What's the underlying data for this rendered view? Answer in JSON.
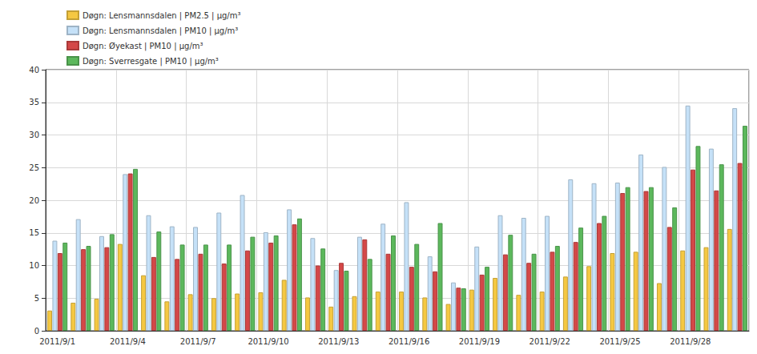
{
  "chart_data": {
    "type": "bar",
    "categories": [
      "2011/9/1",
      null,
      null,
      "2011/9/4",
      null,
      null,
      "2011/9/7",
      null,
      null,
      "2011/9/10",
      null,
      null,
      "2011/9/13",
      null,
      null,
      "2011/9/16",
      null,
      null,
      "2011/9/19",
      null,
      null,
      "2011/9/22",
      null,
      null,
      "2011/9/25",
      null,
      null,
      "2011/9/28",
      null,
      null
    ],
    "series": [
      {
        "name": "Døgn: Lensmannsdalen | PM2.5 | µg/m³",
        "color": "#f5c842",
        "values": [
          3.1,
          4.3,
          4.9,
          13.3,
          8.5,
          4.5,
          5.6,
          5.0,
          5.7,
          5.9,
          7.8,
          5.1,
          3.7,
          5.3,
          6.0,
          6.0,
          5.1,
          4.1,
          6.3,
          8.1,
          5.5,
          6.0,
          8.3,
          9.9,
          11.9,
          12.1,
          7.3,
          12.3,
          12.8,
          15.6
        ]
      },
      {
        "name": "Døgn: Lensmannsdalen | PM10 | µg/m³",
        "color": "#c5e1f8",
        "values": [
          13.8,
          17.1,
          14.5,
          24.0,
          17.7,
          16.0,
          15.9,
          18.1,
          20.8,
          15.1,
          18.6,
          14.2,
          9.3,
          14.4,
          16.4,
          19.7,
          11.4,
          7.4,
          12.9,
          17.7,
          17.3,
          17.6,
          23.2,
          22.6,
          22.7,
          27.0,
          25.1,
          34.5,
          27.9,
          34.1
        ]
      },
      {
        "name": "Døgn: Øyekast | PM10 | µg/m³",
        "color": "#d44848",
        "values": [
          11.9,
          12.5,
          12.8,
          24.1,
          11.3,
          11.0,
          11.8,
          10.3,
          12.3,
          13.5,
          16.3,
          10.0,
          10.4,
          14.0,
          11.8,
          9.8,
          9.1,
          6.6,
          8.6,
          11.7,
          10.4,
          12.1,
          13.6,
          16.5,
          21.1,
          21.4,
          15.9,
          24.7,
          21.5,
          25.7
        ]
      },
      {
        "name": "Døgn: Sverresgate | PM10 | µg/m³",
        "color": "#5cb85c",
        "values": [
          13.5,
          13.0,
          14.8,
          24.8,
          15.2,
          13.2,
          13.2,
          13.2,
          14.4,
          14.6,
          17.2,
          12.6,
          9.2,
          11.0,
          14.6,
          13.3,
          16.5,
          6.5,
          9.8,
          14.7,
          11.8,
          13.0,
          15.8,
          17.6,
          22.0,
          22.0,
          18.9,
          28.3,
          25.5,
          31.4
        ]
      }
    ],
    "ylim": [
      0,
      40
    ],
    "yticks": [
      0,
      5,
      10,
      15,
      20,
      25,
      30,
      35,
      40
    ],
    "grid": true,
    "legend": "top-left"
  }
}
